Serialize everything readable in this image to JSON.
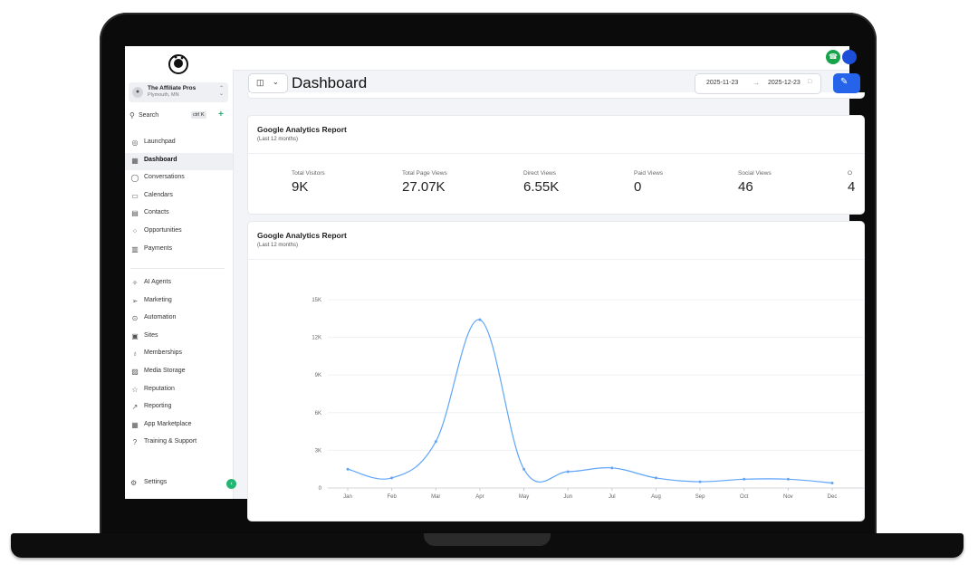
{
  "account": {
    "name": "The Affiliate Pros",
    "location": "Plymouth, MN"
  },
  "search": {
    "label": "Search",
    "shortcut": "ctrl K"
  },
  "nav_primary": [
    {
      "label": "Launchpad",
      "icon": "launchpad-icon",
      "glyph": "◎"
    },
    {
      "label": "Dashboard",
      "icon": "dashboard-icon",
      "glyph": "▦",
      "active": true
    },
    {
      "label": "Conversations",
      "icon": "chat-bubble-icon",
      "glyph": "◯"
    },
    {
      "label": "Calendars",
      "icon": "calendar-icon",
      "glyph": "▭"
    },
    {
      "label": "Contacts",
      "icon": "contacts-icon",
      "glyph": "▤"
    },
    {
      "label": "Opportunities",
      "icon": "opportunities-icon",
      "glyph": "⁘"
    },
    {
      "label": "Payments",
      "icon": "payments-icon",
      "glyph": "▥"
    }
  ],
  "nav_secondary": [
    {
      "label": "AI Agents",
      "icon": "sparkle-icon",
      "glyph": "✧"
    },
    {
      "label": "Marketing",
      "icon": "send-icon",
      "glyph": "➢"
    },
    {
      "label": "Automation",
      "icon": "automation-icon",
      "glyph": "⊙"
    },
    {
      "label": "Sites",
      "icon": "sites-icon",
      "glyph": "▣"
    },
    {
      "label": "Memberships",
      "icon": "award-icon",
      "glyph": "♁"
    },
    {
      "label": "Media Storage",
      "icon": "image-icon",
      "glyph": "▨"
    },
    {
      "label": "Reputation",
      "icon": "star-icon",
      "glyph": "☆"
    },
    {
      "label": "Reporting",
      "icon": "trend-icon",
      "glyph": "↗"
    },
    {
      "label": "App Marketplace",
      "icon": "apps-grid-icon",
      "glyph": "▦"
    },
    {
      "label": "Training & Support",
      "icon": "help-icon",
      "glyph": "?"
    }
  ],
  "settings": {
    "label": "Settings"
  },
  "header": {
    "title": "Dashboard",
    "date_start": "2025-11-23",
    "date_end": "2025-12-23"
  },
  "stats_card": {
    "title": "Google Analytics Report",
    "subtitle": "(Last 12 months)",
    "stats": [
      {
        "label": "Total Visitors",
        "value": "9K"
      },
      {
        "label": "Total Page Views",
        "value": "27.07K"
      },
      {
        "label": "Direct Views",
        "value": "6.55K"
      },
      {
        "label": "Paid Views",
        "value": "0"
      },
      {
        "label": "Social Views",
        "value": "46"
      },
      {
        "label": "O",
        "value": "4"
      }
    ]
  },
  "chart_card": {
    "title": "Google Analytics Report",
    "subtitle": "(Last 12 months)"
  },
  "chart_data": {
    "type": "line",
    "categories": [
      "Jan",
      "Feb",
      "Mar",
      "Apr",
      "May",
      "Jun",
      "Jul",
      "Aug",
      "Sep",
      "Oct",
      "Nov",
      "Dec"
    ],
    "series": [
      {
        "values": [
          1500,
          800,
          3700,
          13400,
          1500,
          1300,
          1600,
          800,
          500,
          700,
          700,
          400
        ]
      }
    ],
    "yticks": [
      "0",
      "3K",
      "6K",
      "9K",
      "12K",
      "15K"
    ],
    "ylim": [
      0,
      15000
    ],
    "grid": true,
    "color": "#60a5fa"
  }
}
